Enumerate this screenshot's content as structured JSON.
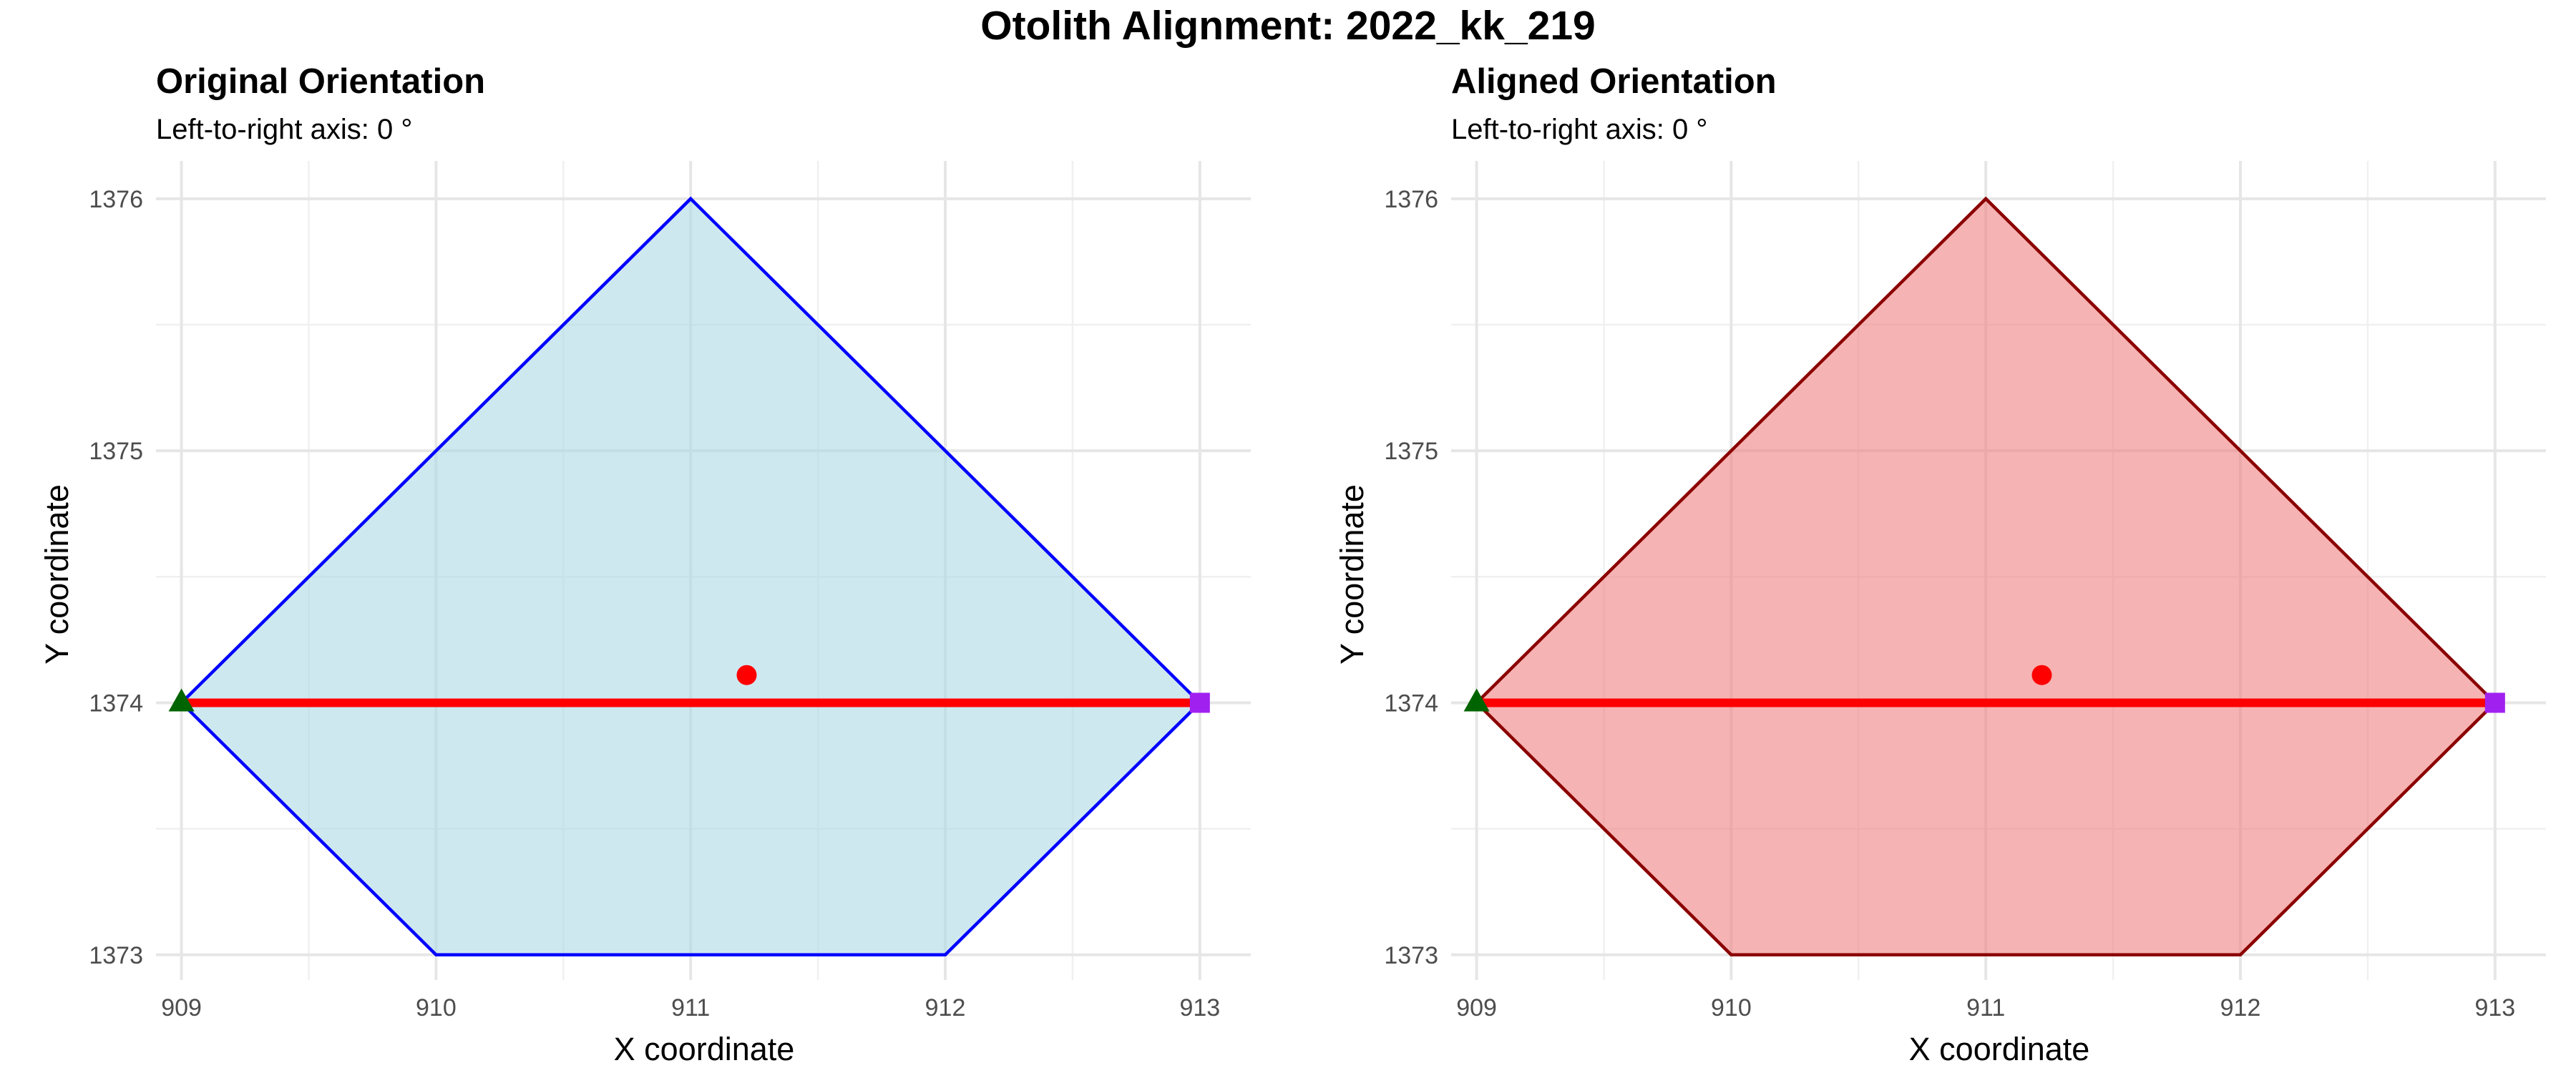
{
  "figure": {
    "title": "Otolith Alignment: 2022_kk_219"
  },
  "chart_data": [
    {
      "type": "polygon",
      "title": "Original Orientation",
      "subtitle": "Left-to-right axis: 0 °",
      "xlabel": "X coordinate",
      "ylabel": "Y coordinate",
      "xlim": [
        908.9,
        913.2
      ],
      "ylim": [
        1372.9,
        1376.15
      ],
      "x_ticks": [
        909,
        910,
        911,
        912,
        913
      ],
      "y_ticks": [
        1373,
        1374,
        1375,
        1376
      ],
      "grid": true,
      "outline": {
        "x": [
          909,
          911,
          913,
          912,
          910
        ],
        "y": [
          1374,
          1376,
          1374,
          1373,
          1373
        ],
        "fill_color": "#add8e6",
        "fill_opacity": 0.6,
        "stroke_color": "#0000ff"
      },
      "axis_line": {
        "x": [
          909,
          913
        ],
        "y": [
          1374,
          1374
        ],
        "color": "#ff0000"
      },
      "centroid": {
        "x": 911.22,
        "y": 1374.11,
        "color": "#ff0000",
        "shape": "circle"
      },
      "start_point": {
        "x": 909,
        "y": 1374,
        "color": "#006400",
        "shape": "triangle"
      },
      "end_point": {
        "x": 913,
        "y": 1374,
        "color": "#a020f0",
        "shape": "square"
      }
    },
    {
      "type": "polygon",
      "title": "Aligned Orientation",
      "subtitle": "Left-to-right axis: 0 °",
      "xlabel": "X coordinate",
      "ylabel": "Y coordinate",
      "xlim": [
        908.9,
        913.2
      ],
      "ylim": [
        1372.9,
        1376.15
      ],
      "x_ticks": [
        909,
        910,
        911,
        912,
        913
      ],
      "y_ticks": [
        1373,
        1374,
        1375,
        1376
      ],
      "grid": true,
      "outline": {
        "x": [
          909,
          911,
          913,
          912,
          910
        ],
        "y": [
          1374,
          1376,
          1374,
          1373,
          1373
        ],
        "fill_color": "#f08080",
        "fill_opacity": 0.6,
        "stroke_color": "#8b0000"
      },
      "axis_line": {
        "x": [
          909,
          913
        ],
        "y": [
          1374,
          1374
        ],
        "color": "#ff0000"
      },
      "centroid": {
        "x": 911.22,
        "y": 1374.11,
        "color": "#ff0000",
        "shape": "circle"
      },
      "start_point": {
        "x": 909,
        "y": 1374,
        "color": "#006400",
        "shape": "triangle"
      },
      "end_point": {
        "x": 913,
        "y": 1374,
        "color": "#a020f0",
        "shape": "square"
      }
    }
  ]
}
